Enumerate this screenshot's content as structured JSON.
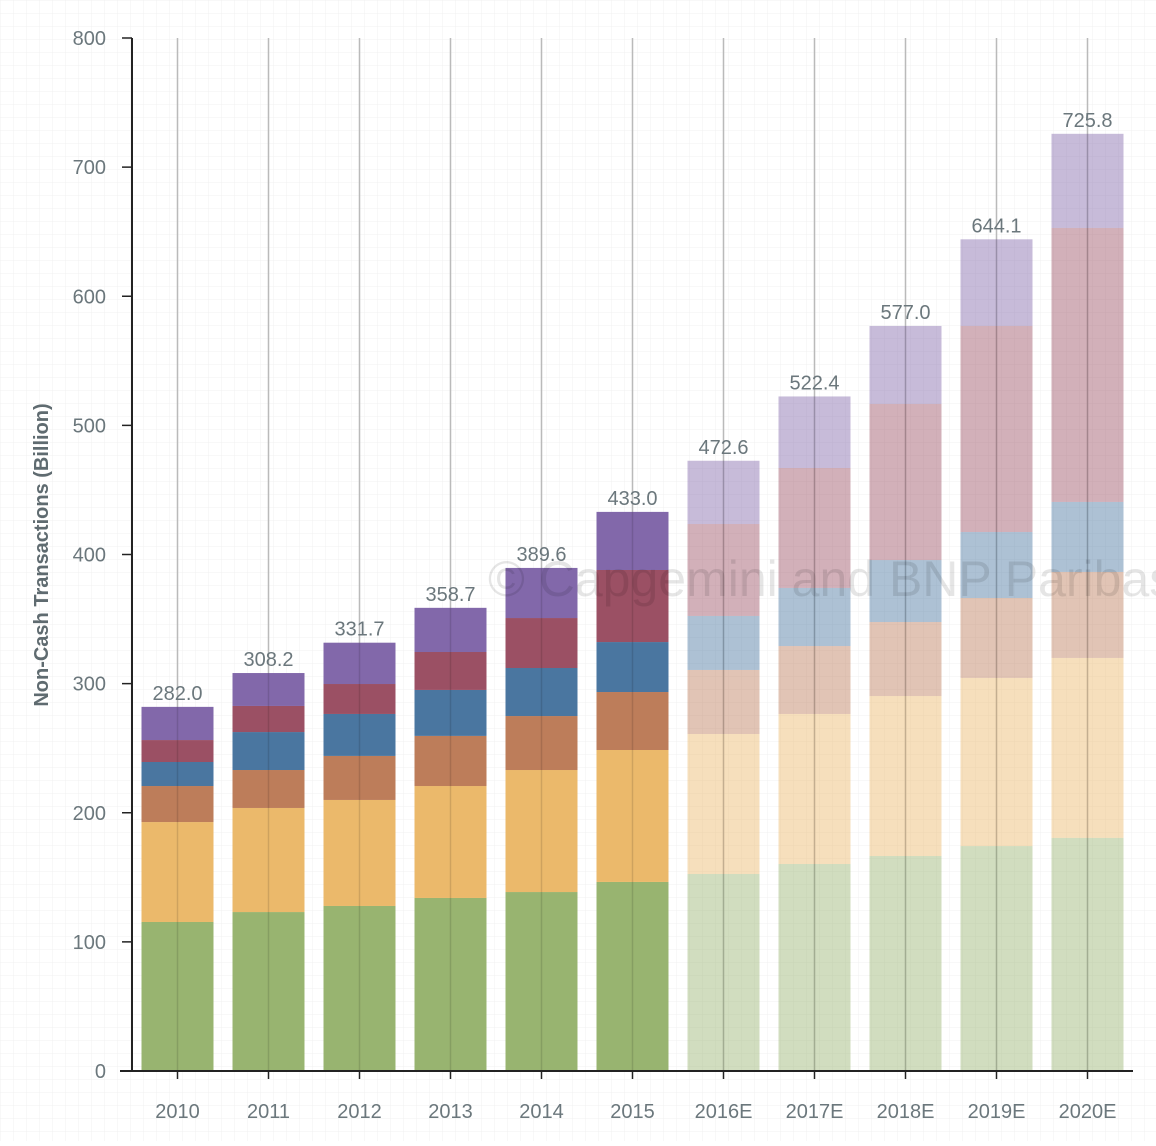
{
  "chart_data": {
    "type": "bar",
    "stacked": true,
    "title": "",
    "xlabel": "",
    "ylabel": "Non-Cash Transactions (Billion)",
    "ylim": [
      0,
      800
    ],
    "yticks": [
      0,
      100,
      200,
      300,
      400,
      500,
      600,
      700,
      800
    ],
    "grid": true,
    "categories": [
      "2010",
      "2011",
      "2012",
      "2013",
      "2014",
      "2015",
      "2016E",
      "2017E",
      "2018E",
      "2019E",
      "2020E"
    ],
    "projected": [
      false,
      false,
      false,
      false,
      false,
      false,
      true,
      true,
      true,
      true,
      true
    ],
    "totals": [
      "282.0",
      "308.2",
      "331.7",
      "358.7",
      "389.6",
      "433.0",
      "472.6",
      "522.4",
      "577.0",
      "644.1",
      "725.8"
    ],
    "series": [
      {
        "color": "#98b470",
        "values": [
          115.4,
          123.1,
          127.8,
          134.0,
          138.6,
          146.4,
          152.6,
          160.3,
          166.5,
          174.2,
          180.5
        ]
      },
      {
        "color": "#ebb96b",
        "values": [
          77.4,
          80.6,
          82.1,
          86.7,
          94.5,
          102.2,
          108.4,
          116.2,
          123.9,
          130.2,
          139.4
        ]
      },
      {
        "color": "#bd7d5a",
        "values": [
          27.9,
          29.4,
          34.1,
          38.8,
          41.8,
          44.9,
          49.6,
          52.6,
          57.3,
          61.9,
          66.6
        ]
      },
      {
        "color": "#4a76a0",
        "values": [
          18.6,
          29.4,
          32.5,
          35.6,
          37.2,
          38.7,
          41.8,
          45.0,
          48.0,
          51.1,
          54.2
        ]
      },
      {
        "color": "#9b5064",
        "values": [
          17.0,
          20.2,
          23.2,
          29.4,
          38.7,
          55.8,
          71.2,
          92.9,
          120.9,
          159.6,
          212.2
        ]
      },
      {
        "color": "#8268aa",
        "values": [
          25.7,
          25.5,
          32.0,
          34.2,
          38.8,
          45.0,
          49.0,
          55.4,
          60.4,
          67.1,
          72.9
        ]
      }
    ]
  },
  "watermark": "© Capgemini and BNP Paribas"
}
